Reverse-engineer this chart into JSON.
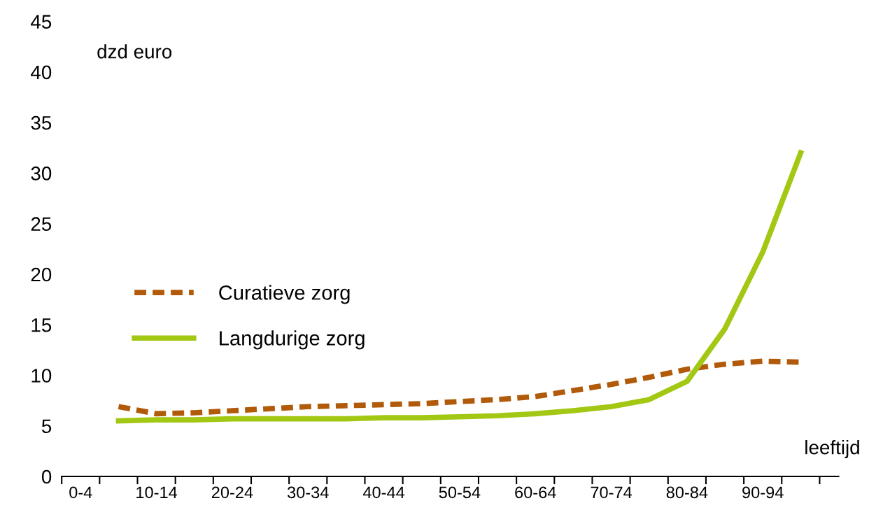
{
  "chart_data": {
    "type": "line",
    "ylabel": "dzd euro",
    "xlabel": "leeftijd",
    "categories": [
      "0-4",
      null,
      "10-14",
      null,
      "20-24",
      null,
      "30-34",
      null,
      "40-44",
      null,
      "50-54",
      null,
      "60-64",
      null,
      "70-74",
      null,
      "80-84",
      null,
      "90-94",
      null
    ],
    "series": [
      {
        "name": "Curatieve zorg",
        "color": "#b05a0a",
        "line_style": "dashed",
        "values": [
          null,
          6.9,
          6.2,
          6.3,
          6.5,
          6.7,
          6.9,
          7.0,
          7.1,
          7.2,
          7.4,
          7.6,
          7.9,
          8.5,
          9.1,
          9.8,
          10.6,
          11.1,
          11.4,
          11.3
        ]
      },
      {
        "name": "Langdurige zorg",
        "color": "#a2c814",
        "line_style": "solid",
        "values": [
          null,
          5.5,
          5.6,
          5.6,
          5.7,
          5.7,
          5.7,
          5.7,
          5.8,
          5.8,
          5.9,
          6.0,
          6.2,
          6.5,
          6.9,
          7.6,
          9.4,
          14.6,
          22.2,
          32
        ]
      }
    ],
    "ylim": [
      0,
      45
    ],
    "yticks": [
      0,
      5,
      10,
      15,
      20,
      25,
      30,
      35,
      40,
      45
    ],
    "grid": false,
    "legend": "left",
    "marker": "none"
  }
}
